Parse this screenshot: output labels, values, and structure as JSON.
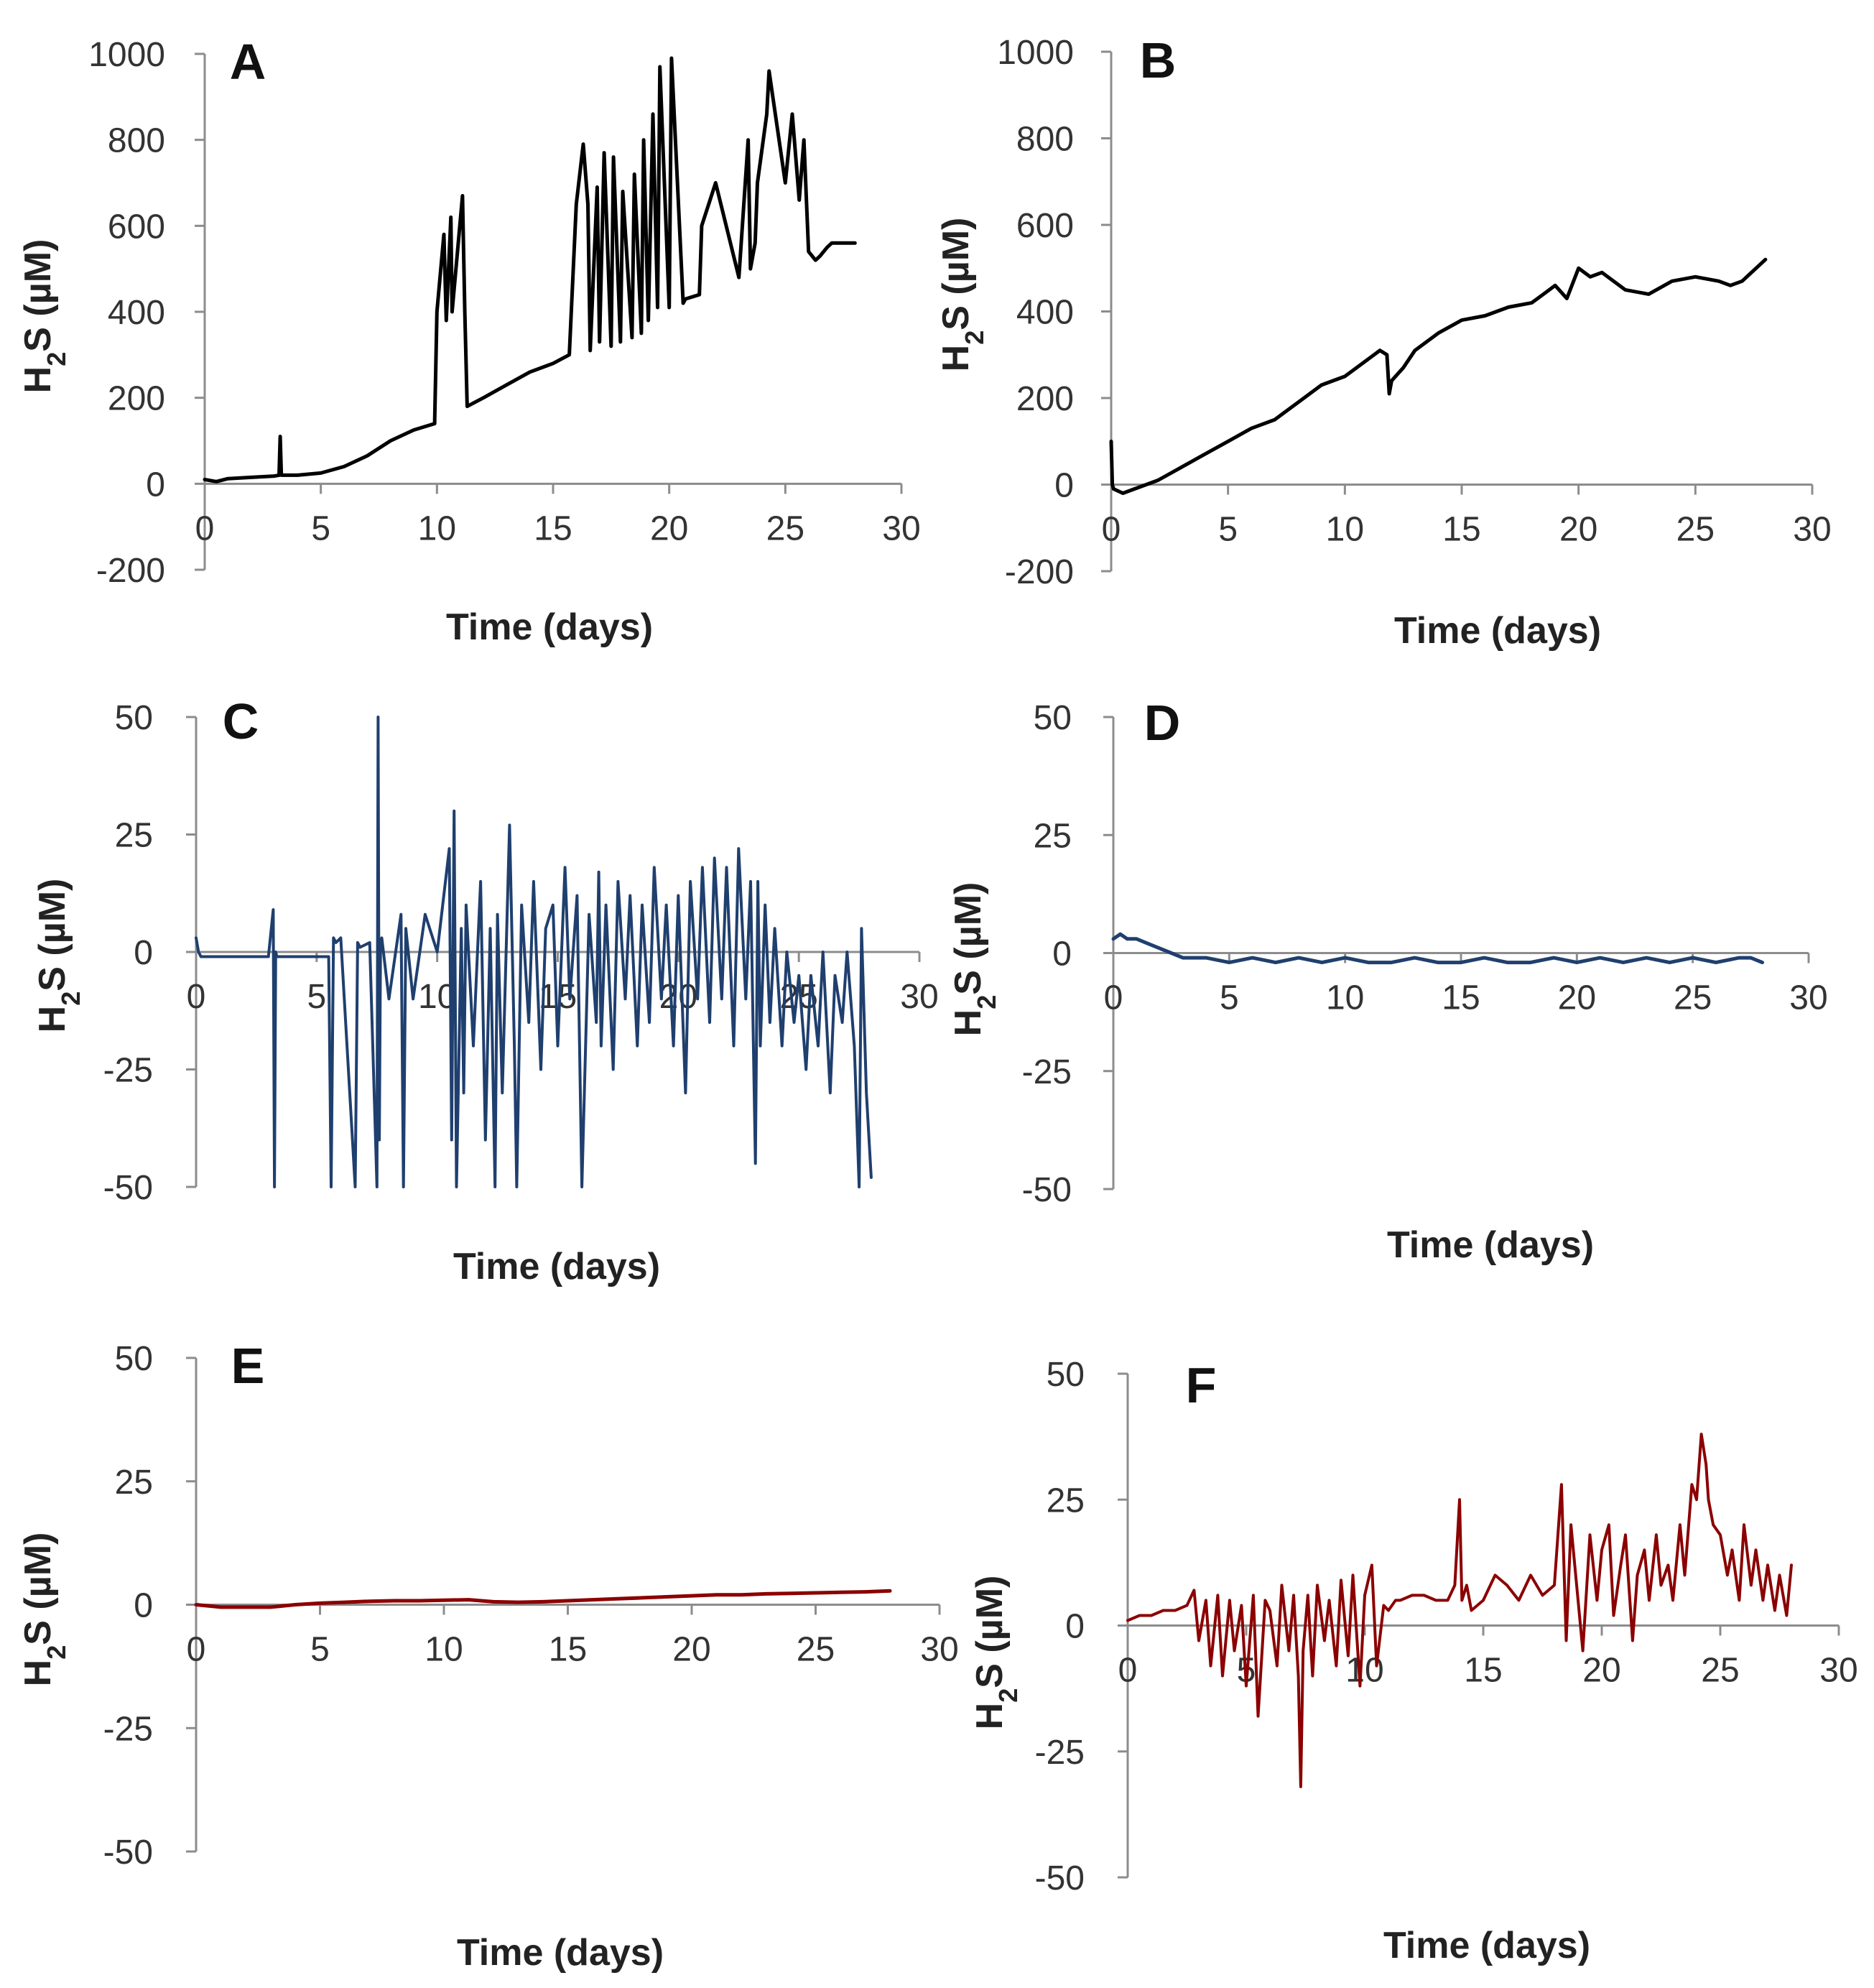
{
  "chart_data": [
    {
      "panel": "A",
      "type": "line",
      "xlabel": "Time  (days)",
      "ylabel": "H2S (µM)",
      "xlim": [
        0,
        30
      ],
      "ylim": [
        -200,
        1000
      ],
      "xticks": [
        0,
        5,
        10,
        15,
        20,
        25,
        30
      ],
      "yticks": [
        1000,
        800,
        600,
        400,
        200,
        0,
        -200
      ],
      "color": "#000000",
      "series": [
        {
          "x": [
            0,
            0.5,
            1,
            2,
            3,
            3.2,
            3.25,
            3.3,
            4,
            5,
            6,
            7,
            8,
            9,
            9.9,
            10.0,
            10.3,
            10.4,
            10.6,
            10.65,
            11.1,
            11.2,
            11.3,
            12,
            13,
            14,
            15,
            15.7,
            15.8,
            16.0,
            16.3,
            16.5,
            16.6,
            16.9,
            17.0,
            17.2,
            17.5,
            17.6,
            17.9,
            18.0,
            18.4,
            18.5,
            18.8,
            18.9,
            19.1,
            19.3,
            19.5,
            19.6,
            20.0,
            20.1,
            20.6,
            20.7,
            21.3,
            21.4,
            22,
            23,
            23.4,
            23.5,
            23.7,
            23.8,
            24.2,
            24.3,
            25.0,
            25.3,
            25.6,
            25.8,
            26.0,
            26.3,
            26.5,
            26.8,
            27.0,
            28.0
          ],
          "y": [
            10,
            5,
            12,
            15,
            18,
            20,
            110,
            20,
            20,
            25,
            40,
            65,
            100,
            125,
            140,
            400,
            580,
            380,
            620,
            400,
            670,
            400,
            180,
            200,
            230,
            260,
            280,
            300,
            420,
            650,
            790,
            650,
            310,
            690,
            330,
            770,
            320,
            760,
            330,
            680,
            340,
            720,
            350,
            800,
            380,
            860,
            410,
            970,
            410,
            990,
            420,
            430,
            440,
            600,
            700,
            480,
            800,
            500,
            560,
            700,
            860,
            960,
            700,
            860,
            660,
            800,
            540,
            520,
            530,
            550,
            560,
            560
          ]
        }
      ]
    },
    {
      "panel": "B",
      "type": "line",
      "xlabel": "Time  (days)",
      "ylabel": "H2S (µM)",
      "xlim": [
        0,
        30
      ],
      "ylim": [
        -200,
        1000
      ],
      "xticks": [
        0,
        5,
        10,
        15,
        20,
        25,
        30
      ],
      "yticks": [
        1000,
        800,
        600,
        400,
        200,
        0,
        -200
      ],
      "color": "#000000",
      "series": [
        {
          "x": [
            0,
            0.05,
            0.1,
            0.5,
            1,
            2,
            3,
            4,
            5,
            6,
            7,
            8,
            9,
            10,
            11,
            11.5,
            11.8,
            11.9,
            12.0,
            12.5,
            13,
            14,
            15,
            16,
            17,
            18,
            18.5,
            19,
            19.5,
            20,
            20.5,
            21,
            22,
            23,
            24,
            25,
            26,
            26.5,
            27,
            28
          ],
          "y": [
            100,
            0,
            -10,
            -20,
            -10,
            10,
            40,
            70,
            100,
            130,
            150,
            190,
            230,
            250,
            290,
            310,
            300,
            210,
            240,
            270,
            310,
            350,
            380,
            390,
            410,
            420,
            440,
            460,
            430,
            500,
            480,
            490,
            450,
            440,
            470,
            480,
            470,
            460,
            470,
            520
          ]
        }
      ]
    },
    {
      "panel": "C",
      "type": "line",
      "xlabel": "Time  (days)",
      "ylabel": "H2S (µM)",
      "xlim": [
        0,
        30
      ],
      "ylim": [
        -50,
        50
      ],
      "xticks": [
        0,
        5,
        10,
        15,
        20,
        25,
        30
      ],
      "yticks": [
        50,
        25,
        0,
        -25,
        -50
      ],
      "color": "#1f3f6e",
      "series": [
        {
          "x": [
            0,
            0.1,
            0.2,
            0.5,
            1,
            2,
            3,
            3.2,
            3.25,
            3.3,
            3.35,
            3.4,
            4,
            5,
            5.5,
            5.6,
            5.7,
            5.8,
            6,
            6.6,
            6.7,
            6.8,
            7.2,
            7.5,
            7.55,
            7.6,
            7.65,
            7.7,
            8.0,
            8.5,
            8.6,
            8.7,
            9.0,
            9.5,
            10.0,
            10.5,
            10.6,
            10.7,
            10.8,
            11.0,
            11.1,
            11.2,
            11.5,
            11.8,
            12.0,
            12.2,
            12.4,
            12.5,
            12.7,
            13.0,
            13.2,
            13.3,
            13.5,
            13.8,
            14.0,
            14.3,
            14.5,
            14.8,
            15.0,
            15.3,
            15.5,
            15.8,
            16.0,
            16.3,
            16.6,
            16.7,
            16.8,
            17.0,
            17.3,
            17.5,
            17.8,
            18.0,
            18.3,
            18.5,
            18.8,
            19.0,
            19.3,
            19.5,
            19.8,
            20.0,
            20.3,
            20.5,
            20.8,
            21.0,
            21.3,
            21.5,
            21.8,
            22.0,
            22.3,
            22.5,
            22.8,
            23.0,
            23.2,
            23.3,
            23.4,
            23.6,
            23.8,
            24.0,
            24.3,
            24.5,
            24.8,
            25.0,
            25.3,
            25.5,
            25.8,
            26.0,
            26.3,
            26.5,
            26.8,
            27.0,
            27.3,
            27.5,
            27.6,
            27.8,
            28.0
          ],
          "y": [
            3,
            0,
            -1,
            -1,
            -1,
            -1,
            -1,
            9,
            -50,
            0,
            -1,
            -1,
            -1,
            -1,
            -1,
            -50,
            3,
            2,
            3,
            -50,
            2,
            1,
            2,
            -50,
            50,
            -40,
            2,
            3,
            -10,
            8,
            -50,
            5,
            -10,
            8,
            0,
            22,
            -40,
            30,
            -50,
            5,
            -30,
            10,
            -20,
            15,
            -40,
            5,
            -50,
            8,
            -30,
            27,
            -20,
            -50,
            10,
            -15,
            15,
            -25,
            5,
            10,
            -20,
            18,
            -10,
            12,
            -50,
            8,
            -15,
            17,
            -20,
            10,
            -25,
            15,
            -10,
            12,
            -20,
            10,
            -15,
            18,
            -10,
            10,
            -20,
            12,
            -30,
            15,
            -10,
            18,
            -15,
            20,
            -10,
            18,
            -20,
            22,
            -10,
            15,
            -45,
            15,
            -20,
            10,
            -15,
            5,
            -20,
            0,
            -15,
            -5,
            -25,
            -5,
            -20,
            0,
            -30,
            -5,
            -15,
            0,
            -20,
            -50,
            5,
            -30,
            -48
          ]
        }
      ]
    },
    {
      "panel": "D",
      "type": "line",
      "xlabel": "Time  (days)",
      "ylabel": "H2S (µM)",
      "xlim": [
        0,
        30
      ],
      "ylim": [
        -50,
        50
      ],
      "xticks": [
        0,
        5,
        10,
        15,
        20,
        25,
        30
      ],
      "yticks": [
        50,
        25,
        0,
        -25,
        -50
      ],
      "color": "#1f3f6e",
      "series": [
        {
          "x": [
            0,
            0.3,
            0.6,
            1.0,
            1.5,
            2.0,
            2.5,
            3,
            4,
            5,
            6,
            7,
            8,
            9,
            10,
            11,
            12,
            13,
            14,
            15,
            16,
            17,
            18,
            19,
            20,
            21,
            22,
            23,
            24,
            25,
            26,
            27,
            27.5,
            28
          ],
          "y": [
            3,
            4,
            3,
            3,
            2,
            1,
            0,
            -1,
            -1,
            -2,
            -1,
            -2,
            -1,
            -2,
            -1,
            -2,
            -2,
            -1,
            -2,
            -2,
            -1,
            -2,
            -2,
            -1,
            -2,
            -1,
            -2,
            -1,
            -2,
            -1,
            -2,
            -1,
            -1,
            -2
          ]
        }
      ]
    },
    {
      "panel": "E",
      "type": "line",
      "xlabel": "Time  (days)",
      "ylabel": "H2S (µM)",
      "xlim": [
        0,
        30
      ],
      "ylim": [
        -50,
        50
      ],
      "xticks": [
        0,
        5,
        10,
        15,
        20,
        25,
        30
      ],
      "yticks": [
        50,
        25,
        0,
        -25,
        -50
      ],
      "color": "#8b0000",
      "series": [
        {
          "x": [
            0,
            1,
            2,
            3,
            4,
            5,
            6,
            7,
            8,
            9,
            10,
            11,
            12,
            13,
            14,
            15,
            16,
            17,
            18,
            19,
            20,
            21,
            22,
            23,
            24,
            25,
            26,
            27,
            28
          ],
          "y": [
            0,
            -0.5,
            -0.5,
            -0.5,
            0,
            0.3,
            0.5,
            0.7,
            0.8,
            0.8,
            0.9,
            1.0,
            0.6,
            0.5,
            0.6,
            0.8,
            1.0,
            1.2,
            1.4,
            1.6,
            1.8,
            2.0,
            2.0,
            2.2,
            2.3,
            2.4,
            2.5,
            2.6,
            2.8
          ]
        }
      ]
    },
    {
      "panel": "F",
      "type": "line",
      "xlabel": "Time  (days)",
      "ylabel": "H2S (µM)",
      "xlim": [
        0,
        30
      ],
      "ylim": [
        -50,
        50
      ],
      "xticks": [
        0,
        5,
        10,
        15,
        20,
        25,
        30
      ],
      "yticks": [
        50,
        25,
        0,
        -25,
        -50
      ],
      "color": "#8b0000",
      "series": [
        {
          "x": [
            0,
            0.5,
            1,
            1.5,
            2,
            2.5,
            2.8,
            3.0,
            3.3,
            3.5,
            3.8,
            4.0,
            4.3,
            4.5,
            4.8,
            5.0,
            5.3,
            5.5,
            5.8,
            6.0,
            6.3,
            6.5,
            6.8,
            7.0,
            7.2,
            7.3,
            7.4,
            7.6,
            7.8,
            8.0,
            8.3,
            8.5,
            8.8,
            9.0,
            9.3,
            9.5,
            9.8,
            10.0,
            10.3,
            10.5,
            10.8,
            11.0,
            11.3,
            11.5,
            12.0,
            12.5,
            13.0,
            13.5,
            13.8,
            14.0,
            14.1,
            14.3,
            14.5,
            15.0,
            15.5,
            16.0,
            16.5,
            17.0,
            17.5,
            18.0,
            18.3,
            18.5,
            18.7,
            19.0,
            19.2,
            19.5,
            19.8,
            20.0,
            20.3,
            20.5,
            20.8,
            21.0,
            21.3,
            21.5,
            21.8,
            22.0,
            22.3,
            22.5,
            22.8,
            23.0,
            23.3,
            23.5,
            23.8,
            24.0,
            24.2,
            24.4,
            24.5,
            24.7,
            25.0,
            25.3,
            25.5,
            25.8,
            26.0,
            26.3,
            26.5,
            26.8,
            27.0,
            27.3,
            27.5,
            27.8,
            28.0
          ],
          "y": [
            1,
            2,
            2,
            3,
            3,
            4,
            7,
            -3,
            5,
            -8,
            6,
            -10,
            5,
            -5,
            4,
            -12,
            6,
            -18,
            5,
            3,
            -8,
            8,
            -5,
            6,
            -10,
            -32,
            -5,
            6,
            -10,
            8,
            -3,
            5,
            -8,
            9,
            -6,
            10,
            -12,
            6,
            12,
            -8,
            4,
            3,
            5,
            5,
            6,
            6,
            5,
            5,
            8,
            25,
            5,
            8,
            3,
            5,
            10,
            8,
            5,
            10,
            6,
            8,
            28,
            -3,
            20,
            5,
            -5,
            18,
            5,
            15,
            20,
            2,
            12,
            18,
            -3,
            10,
            15,
            5,
            18,
            8,
            12,
            5,
            20,
            10,
            28,
            25,
            38,
            32,
            25,
            20,
            18,
            10,
            15,
            5,
            20,
            8,
            15,
            5,
            12,
            3,
            10,
            2,
            12
          ]
        }
      ]
    }
  ]
}
